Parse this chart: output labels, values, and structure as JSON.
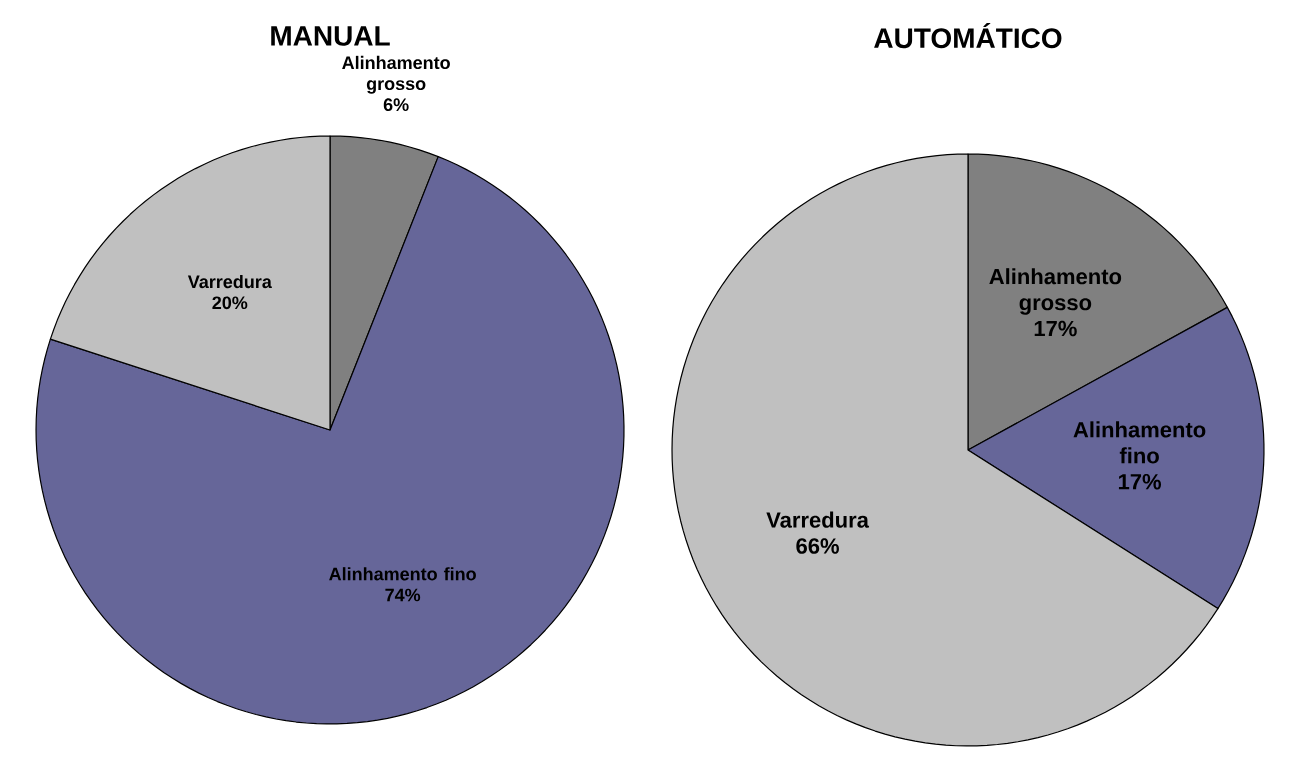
{
  "chart_data": [
    {
      "type": "pie",
      "title": "MANUAL",
      "categories": [
        "Alinhamento grosso",
        "Alinhamento fino",
        "Varredura"
      ],
      "values": [
        6,
        74,
        20
      ],
      "colors": [
        "#808080",
        "#666699",
        "#c0c0c0"
      ],
      "value_labels": [
        "6%",
        "74%",
        "20%"
      ]
    },
    {
      "type": "pie",
      "title": "AUTOMÁTICO",
      "categories": [
        "Alinhamento grosso",
        "Alinhamento fino",
        "Varredura"
      ],
      "values": [
        17,
        17,
        66
      ],
      "colors": [
        "#808080",
        "#666699",
        "#c0c0c0"
      ],
      "value_labels": [
        "17%",
        "17%",
        "66%"
      ]
    }
  ]
}
